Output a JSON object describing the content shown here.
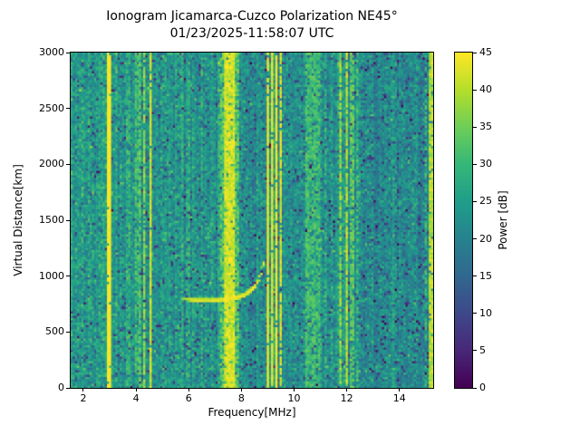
{
  "chart_data": {
    "type": "heatmap",
    "title": "Ionogram Jicamarca-Cuzco Polarization NE45°",
    "subtitle": "01/23/2025-11:58:07 UTC",
    "xlabel": "Frequency[MHz]",
    "ylabel": "Virtual Distance[km]",
    "xlim": [
      1.52,
      15.28
    ],
    "ylim": [
      0,
      3000
    ],
    "xticks": [
      2,
      4,
      6,
      8,
      10,
      12,
      14
    ],
    "yticks": [
      0,
      500,
      1000,
      1500,
      2000,
      2500,
      3000
    ],
    "grid_on": false,
    "colorbar": {
      "label": "Power [dB]",
      "vmin": 0,
      "vmax": 45,
      "ticks": [
        0,
        5,
        10,
        15,
        20,
        25,
        30,
        35,
        40,
        45
      ],
      "colormap": "viridis"
    },
    "colormap_anchors": [
      "#440154",
      "#482878",
      "#3e4989",
      "#31688e",
      "#26828e",
      "#1f9e89",
      "#35b779",
      "#6ece58",
      "#b5de2b",
      "#fde725"
    ],
    "grid": {
      "cols": 170,
      "rows": 148
    },
    "noise": {
      "seed": 42,
      "std_db": 3.3,
      "dark_speckle_prob": 0.08,
      "dark_speckle_depth_db": 12,
      "bright_speckle_prob": 0.04,
      "column_gain_std_db": 1.3,
      "streak_column_prob": 0.05
    },
    "background_regions": [
      {
        "f0": 1.52,
        "f1": 3.1,
        "mean_db": 24.5
      },
      {
        "f0": 3.1,
        "f1": 5.2,
        "mean_db": 23.5
      },
      {
        "f0": 5.2,
        "f1": 7.9,
        "mean_db": 23.0
      },
      {
        "f0": 7.9,
        "f1": 8.95,
        "mean_db": 21.5
      },
      {
        "f0": 8.95,
        "f1": 12.5,
        "mean_db": 22.5
      },
      {
        "f0": 12.5,
        "f1": 15.28,
        "mean_db": 21.5
      }
    ],
    "rfi_bands": [
      {
        "f0": 2.92,
        "f1": 3.03,
        "db": 45,
        "coverage": 0.98,
        "jitter": 1.5
      },
      {
        "f0": 3.66,
        "f1": 3.8,
        "db": 30,
        "coverage": 0.65,
        "jitter": 4
      },
      {
        "f0": 3.94,
        "f1": 4.1,
        "db": 31,
        "coverage": 0.7,
        "jitter": 4
      },
      {
        "f0": 4.14,
        "f1": 4.23,
        "db": 33,
        "coverage": 0.75,
        "jitter": 4
      },
      {
        "f0": 4.31,
        "f1": 4.39,
        "db": 38,
        "coverage": 0.85,
        "jitter": 3.5
      },
      {
        "f0": 4.51,
        "f1": 4.62,
        "db": 42,
        "coverage": 0.95,
        "jitter": 2.5
      },
      {
        "f0": 5.72,
        "f1": 5.84,
        "db": 29,
        "coverage": 0.55,
        "jitter": 4
      },
      {
        "f0": 5.95,
        "f1": 6.06,
        "db": 30,
        "coverage": 0.6,
        "jitter": 4
      },
      {
        "f0": 6.45,
        "f1": 6.55,
        "db": 29,
        "coverage": 0.5,
        "jitter": 4
      },
      {
        "f0": 7.15,
        "f1": 7.88,
        "db": 33,
        "coverage": 0.8,
        "jitter": 5
      },
      {
        "f0": 7.38,
        "f1": 7.74,
        "db": 42,
        "coverage": 0.9,
        "jitter": 3.5
      },
      {
        "f0": 8.94,
        "f1": 9.06,
        "db": 45,
        "coverage": 0.95,
        "jitter": 1.5
      },
      {
        "f0": 9.1,
        "f1": 9.19,
        "db": 44,
        "coverage": 0.9,
        "jitter": 2.5
      },
      {
        "f0": 9.26,
        "f1": 9.35,
        "db": 45,
        "coverage": 0.95,
        "jitter": 1.5
      },
      {
        "f0": 9.42,
        "f1": 9.52,
        "db": 43,
        "coverage": 0.85,
        "jitter": 3
      },
      {
        "f0": 10.45,
        "f1": 10.97,
        "db": 31,
        "coverage": 0.75,
        "jitter": 4
      },
      {
        "f0": 11.14,
        "f1": 11.26,
        "db": 29,
        "coverage": 0.5,
        "jitter": 4
      },
      {
        "f0": 11.7,
        "f1": 11.8,
        "db": 38,
        "coverage": 0.8,
        "jitter": 4.5
      },
      {
        "f0": 11.94,
        "f1": 12.06,
        "db": 40,
        "coverage": 0.85,
        "jitter": 4
      },
      {
        "f0": 12.14,
        "f1": 12.31,
        "db": 34,
        "coverage": 0.7,
        "jitter": 4
      },
      {
        "f0": 12.37,
        "f1": 12.45,
        "db": 31,
        "coverage": 0.55,
        "jitter": 4
      },
      {
        "f0": 14.92,
        "f1": 15.04,
        "db": 30,
        "coverage": 0.6,
        "jitter": 4
      },
      {
        "f0": 15.13,
        "f1": 15.28,
        "db": 40,
        "coverage": 0.9,
        "jitter": 4
      }
    ],
    "echo_trace": {
      "points": [
        [
          5.3,
          815
        ],
        [
          5.7,
          800
        ],
        [
          6.2,
          790
        ],
        [
          6.8,
          785
        ],
        [
          7.3,
          790
        ],
        [
          7.8,
          808
        ],
        [
          8.1,
          832
        ],
        [
          8.35,
          872
        ],
        [
          8.55,
          922
        ],
        [
          8.68,
          975
        ],
        [
          8.76,
          1032
        ],
        [
          8.82,
          1090
        ],
        [
          8.86,
          1145
        ]
      ],
      "thickness_km": [
        [
          5.3,
          20
        ],
        [
          6.0,
          30
        ],
        [
          6.6,
          40
        ],
        [
          7.5,
          42
        ],
        [
          8.2,
          40
        ],
        [
          8.6,
          30
        ],
        [
          8.86,
          20
        ]
      ],
      "power_db": [
        [
          5.3,
          33
        ],
        [
          5.8,
          38
        ],
        [
          6.1,
          44
        ],
        [
          8.5,
          45
        ],
        [
          8.86,
          43
        ]
      ],
      "coverage": [
        [
          5.3,
          0.3
        ],
        [
          5.6,
          0.55
        ],
        [
          5.9,
          0.9
        ],
        [
          6.1,
          1.0
        ],
        [
          8.5,
          1.0
        ],
        [
          8.65,
          0.8
        ],
        [
          8.75,
          0.6
        ],
        [
          8.86,
          0.45
        ]
      ]
    },
    "faint_echo_patch": {
      "f0": 6.25,
      "f1": 6.95,
      "km0": 1340,
      "km1": 1445,
      "power_db": 29,
      "coverage": 0.22
    }
  }
}
